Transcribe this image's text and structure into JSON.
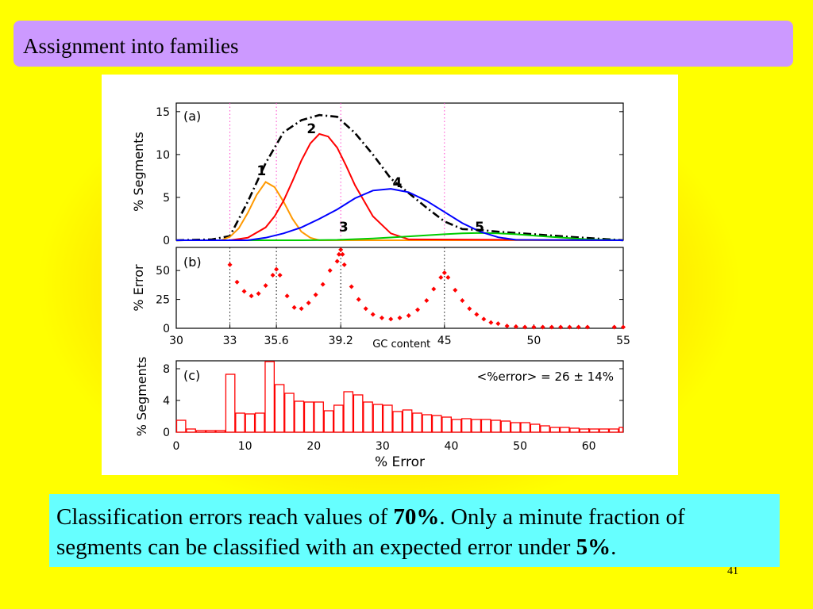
{
  "slide": {
    "title": "Assignment into families",
    "page_number": "41",
    "caption": {
      "part1": "Classification errors reach values of ",
      "bold1": "70%",
      "part2": ". Only a minute fraction of segments can be classified with an expected error under ",
      "bold2": "5%",
      "part3": "."
    },
    "colors": {
      "background": "#ffff00",
      "title_bar": "#cc99ff",
      "caption_box": "#66ffff"
    }
  },
  "chart_data": [
    {
      "panel": "(a)",
      "type": "line",
      "ylabel": "% Segments",
      "xlim": [
        30,
        55
      ],
      "ylim": [
        0,
        16
      ],
      "yticks": [
        "0",
        "5",
        "10",
        "15"
      ],
      "vlines": [
        33,
        35.6,
        39.2,
        45
      ],
      "series": [
        {
          "name": "",
          "color": "#000000",
          "style": "dash-dot",
          "x": [
            30,
            32,
            33,
            34,
            35,
            36,
            37,
            38,
            39,
            40,
            41,
            42,
            43,
            44,
            45,
            46,
            47,
            48,
            50,
            52,
            55
          ],
          "y": [
            0,
            0.1,
            0.5,
            4.5,
            9,
            12.6,
            14,
            14.6,
            14.4,
            12.5,
            10,
            7.2,
            5.5,
            3.8,
            2.2,
            1.3,
            1.2,
            1.0,
            0.7,
            0.4,
            0
          ]
        },
        {
          "name": "1",
          "color": "#ff9900",
          "x": [
            30,
            32.5,
            33,
            33.5,
            34,
            34.5,
            35,
            35.5,
            36,
            36.5,
            37,
            37.5,
            38,
            55
          ],
          "y": [
            0,
            0,
            0.4,
            1.4,
            3.2,
            5.3,
            6.8,
            6.2,
            4.5,
            2.5,
            1.0,
            0.3,
            0,
            0
          ]
        },
        {
          "name": "2",
          "color": "#ff0000",
          "x": [
            30,
            33,
            34,
            35,
            35.5,
            36,
            36.5,
            37,
            37.5,
            38,
            38.5,
            39,
            39.5,
            40,
            41,
            42,
            43,
            55
          ],
          "y": [
            0,
            0,
            0.3,
            1.5,
            2.8,
            4.6,
            6.9,
            9.3,
            11.3,
            12.4,
            12.1,
            10.8,
            8.7,
            6.4,
            2.8,
            0.8,
            0.1,
            0
          ]
        },
        {
          "name": "3",
          "color": "#00cc00",
          "x": [
            30,
            37,
            39,
            41,
            43,
            45,
            46,
            47,
            48,
            49,
            50,
            51,
            52,
            53,
            55
          ],
          "y": [
            0,
            0,
            0.05,
            0.2,
            0.45,
            0.7,
            0.8,
            0.85,
            0.8,
            0.7,
            0.55,
            0.4,
            0.25,
            0.1,
            0
          ]
        },
        {
          "name": "4",
          "color": "#0000ff",
          "x": [
            30,
            34,
            35,
            36,
            37,
            38,
            39,
            40,
            41,
            42,
            43,
            44,
            45,
            46,
            47,
            48,
            49,
            55
          ],
          "y": [
            0,
            0,
            0.3,
            0.8,
            1.5,
            2.5,
            3.6,
            4.9,
            5.8,
            6.0,
            5.6,
            4.6,
            3.3,
            2.0,
            1.0,
            0.35,
            0.05,
            0
          ]
        }
      ],
      "annotations": [
        "(a)",
        "1",
        "2",
        "3",
        "4",
        "5"
      ]
    },
    {
      "panel": "(b)",
      "type": "scatter",
      "ylabel": "% Error",
      "xlabel": "GC content",
      "xlim": [
        30,
        55
      ],
      "ylim": [
        0,
        70
      ],
      "yticks": [
        "0",
        "25",
        "50"
      ],
      "xticks": [
        "30",
        "33",
        "35.6",
        "39.2",
        "45",
        "50",
        "55"
      ],
      "vlines": [
        33,
        35.6,
        39.2,
        45
      ],
      "color": "#ff0000",
      "x": [
        33,
        33.4,
        33.8,
        34.2,
        34.6,
        35.0,
        35.4,
        35.6,
        35.8,
        36.2,
        36.6,
        37.0,
        37.4,
        37.8,
        38.2,
        38.6,
        39.0,
        39.1,
        39.2,
        39.3,
        39.4,
        39.8,
        40.2,
        40.6,
        41.0,
        41.5,
        42.0,
        42.5,
        43.0,
        43.5,
        44.0,
        44.4,
        44.8,
        45.0,
        45.2,
        45.6,
        46.0,
        46.4,
        46.8,
        47.2,
        47.6,
        48.0,
        48.5,
        49.0,
        49.5,
        50.0,
        50.5,
        51.0,
        51.5,
        52.0,
        52.5,
        53,
        54.5,
        55
      ],
      "y": [
        55,
        40,
        32,
        28,
        30,
        37,
        46,
        51,
        46,
        28,
        18,
        17,
        22,
        29,
        38,
        50,
        58,
        64,
        68,
        64,
        55,
        36,
        25,
        17,
        12,
        9,
        8,
        9,
        11,
        16,
        24,
        34,
        44,
        48,
        44,
        33,
        24,
        17,
        12,
        8,
        5,
        4,
        2,
        1.5,
        1,
        1,
        1,
        1,
        1,
        1,
        1,
        1,
        1,
        1
      ]
    },
    {
      "panel": "(c)",
      "type": "bar",
      "ylabel": "% Segments",
      "xlabel": "% Error",
      "xlim": [
        0,
        65
      ],
      "ylim": [
        0,
        9
      ],
      "yticks": [
        "0",
        "4",
        "8"
      ],
      "xticks": [
        "0",
        "10",
        "20",
        "30",
        "40",
        "50",
        "60"
      ],
      "bin_width": 1.43,
      "color": "#ff0000",
      "values": [
        1.5,
        0.4,
        0.2,
        0.2,
        0.2,
        7.3,
        2.4,
        2.3,
        2.4,
        8.9,
        6.0,
        4.9,
        3.9,
        3.8,
        3.8,
        2.7,
        3.4,
        5.1,
        4.7,
        3.8,
        3.5,
        3.4,
        2.6,
        2.8,
        2.4,
        2.2,
        2.1,
        1.9,
        1.6,
        1.7,
        1.6,
        1.6,
        1.5,
        1.4,
        1.2,
        1.2,
        1.0,
        0.8,
        0.6,
        0.6,
        0.5,
        0.4,
        0.4,
        0.4,
        0.4,
        0.6
      ],
      "annotation": "<%error> = 26 ± 14%"
    }
  ]
}
